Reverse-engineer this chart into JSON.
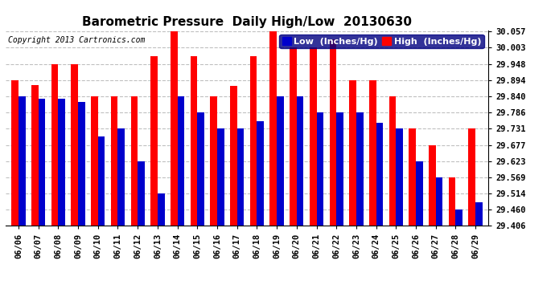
{
  "title": "Barometric Pressure  Daily High/Low  20130630",
  "copyright": "Copyright 2013 Cartronics.com",
  "ylabel_low": "Low  (Inches/Hg)",
  "ylabel_high": "High  (Inches/Hg)",
  "dates": [
    "06/06",
    "06/07",
    "06/08",
    "06/09",
    "06/10",
    "06/11",
    "06/12",
    "06/13",
    "06/14",
    "06/15",
    "06/16",
    "06/17",
    "06/18",
    "06/19",
    "06/20",
    "06/21",
    "06/22",
    "06/23",
    "06/24",
    "06/25",
    "06/26",
    "06/27",
    "06/28",
    "06/29"
  ],
  "high": [
    29.894,
    29.877,
    29.948,
    29.948,
    29.84,
    29.84,
    29.84,
    29.975,
    30.057,
    29.975,
    29.84,
    29.875,
    29.975,
    30.057,
    30.003,
    30.003,
    30.03,
    29.894,
    29.894,
    29.84,
    29.731,
    29.677,
    29.569,
    29.731
  ],
  "low": [
    29.84,
    29.831,
    29.831,
    29.82,
    29.706,
    29.731,
    29.623,
    29.514,
    29.84,
    29.786,
    29.731,
    29.731,
    29.756,
    29.84,
    29.84,
    29.786,
    29.786,
    29.786,
    29.752,
    29.731,
    29.623,
    29.569,
    29.46,
    29.486
  ],
  "color_high": "#ff0000",
  "color_low": "#0000cc",
  "ylim_min": 29.406,
  "ylim_max": 30.057,
  "yticks": [
    29.406,
    29.46,
    29.514,
    29.569,
    29.623,
    29.677,
    29.731,
    29.786,
    29.84,
    29.894,
    29.948,
    30.003,
    30.057
  ],
  "background_color": "#ffffff",
  "grid_color": "#c0c0c0",
  "bar_width": 0.35,
  "title_fontsize": 11,
  "tick_fontsize": 7.5,
  "legend_fontsize": 8,
  "copyright_fontsize": 7
}
